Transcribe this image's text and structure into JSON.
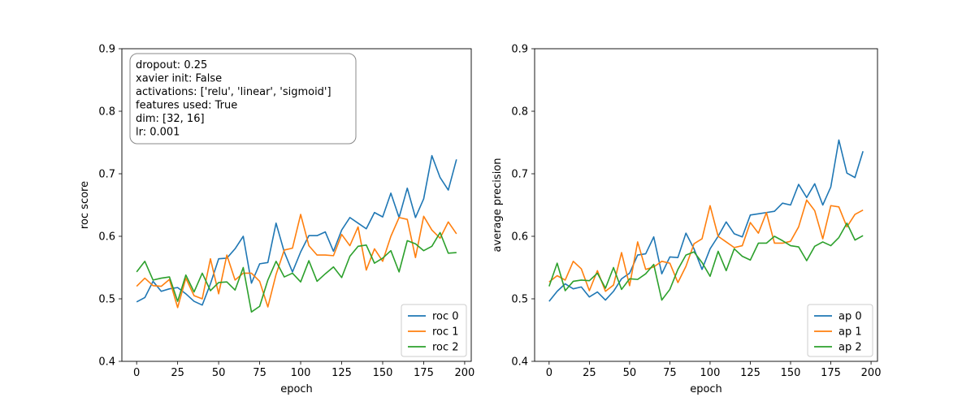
{
  "colors": {
    "series0": "#1f77b4",
    "series1": "#ff7f0e",
    "series2": "#2ca02c"
  },
  "chart_data": [
    {
      "type": "line",
      "title": "",
      "xlabel": "epoch",
      "ylabel": "roc score",
      "xlim": [
        -9,
        204
      ],
      "ylim": [
        0.4,
        0.9
      ],
      "xticks": [
        0,
        25,
        50,
        75,
        100,
        125,
        150,
        175,
        200
      ],
      "yticks": [
        0.4,
        0.5,
        0.6,
        0.7,
        0.8,
        0.9
      ],
      "legend_position": "lower-right",
      "annotation": {
        "position": "top-left",
        "lines": [
          "dropout: 0.25",
          "xavier init: False",
          "activations: ['relu', 'linear', 'sigmoid']",
          "features used: True",
          "dim: [32, 16]",
          "lr: 0.001"
        ]
      },
      "x": [
        0,
        5,
        10,
        15,
        20,
        25,
        30,
        35,
        40,
        45,
        50,
        55,
        60,
        65,
        70,
        75,
        80,
        85,
        90,
        95,
        100,
        105,
        110,
        115,
        120,
        125,
        130,
        135,
        140,
        145,
        150,
        155,
        160,
        165,
        170,
        175,
        180,
        185,
        190,
        195
      ],
      "series": [
        {
          "name": "roc 0",
          "color": "#1f77b4",
          "values": [
            0.495,
            0.502,
            0.528,
            0.512,
            0.516,
            0.518,
            0.508,
            0.496,
            0.49,
            0.524,
            0.564,
            0.565,
            0.58,
            0.6,
            0.525,
            0.556,
            0.558,
            0.621,
            0.575,
            0.543,
            0.575,
            0.601,
            0.601,
            0.607,
            0.576,
            0.61,
            0.63,
            0.621,
            0.612,
            0.638,
            0.631,
            0.669,
            0.63,
            0.677,
            0.63,
            0.66,
            0.729,
            0.694,
            0.674,
            0.723
          ]
        },
        {
          "name": "roc 1",
          "color": "#ff7f0e",
          "values": [
            0.52,
            0.533,
            0.521,
            0.52,
            0.531,
            0.486,
            0.533,
            0.505,
            0.5,
            0.564,
            0.508,
            0.57,
            0.53,
            0.541,
            0.541,
            0.528,
            0.487,
            0.539,
            0.578,
            0.581,
            0.635,
            0.585,
            0.57,
            0.57,
            0.569,
            0.603,
            0.585,
            0.615,
            0.546,
            0.58,
            0.56,
            0.6,
            0.63,
            0.627,
            0.566,
            0.632,
            0.61,
            0.597,
            0.623,
            0.604
          ]
        },
        {
          "name": "roc 2",
          "color": "#2ca02c",
          "values": [
            0.543,
            0.56,
            0.53,
            0.533,
            0.535,
            0.496,
            0.538,
            0.511,
            0.541,
            0.513,
            0.526,
            0.527,
            0.514,
            0.55,
            0.479,
            0.488,
            0.53,
            0.56,
            0.535,
            0.541,
            0.527,
            0.561,
            0.528,
            0.54,
            0.551,
            0.534,
            0.568,
            0.584,
            0.586,
            0.557,
            0.565,
            0.577,
            0.543,
            0.593,
            0.588,
            0.577,
            0.584,
            0.606,
            0.573,
            0.574
          ]
        }
      ]
    },
    {
      "type": "line",
      "title": "",
      "xlabel": "epoch",
      "ylabel": "average precision",
      "xlim": [
        -9,
        204
      ],
      "ylim": [
        0.4,
        0.9
      ],
      "xticks": [
        0,
        25,
        50,
        75,
        100,
        125,
        150,
        175,
        200
      ],
      "yticks": [
        0.4,
        0.5,
        0.6,
        0.7,
        0.8,
        0.9
      ],
      "legend_position": "lower-right",
      "x": [
        0,
        5,
        10,
        15,
        20,
        25,
        30,
        35,
        40,
        45,
        50,
        55,
        60,
        65,
        70,
        75,
        80,
        85,
        90,
        95,
        100,
        105,
        110,
        115,
        120,
        125,
        130,
        135,
        140,
        145,
        150,
        155,
        160,
        165,
        170,
        175,
        180,
        185,
        190,
        195
      ],
      "series": [
        {
          "name": "ap 0",
          "color": "#1f77b4",
          "values": [
            0.496,
            0.512,
            0.524,
            0.516,
            0.519,
            0.503,
            0.511,
            0.498,
            0.512,
            0.532,
            0.541,
            0.57,
            0.572,
            0.599,
            0.54,
            0.567,
            0.566,
            0.605,
            0.58,
            0.547,
            0.58,
            0.6,
            0.623,
            0.604,
            0.599,
            0.634,
            0.636,
            0.638,
            0.64,
            0.653,
            0.65,
            0.683,
            0.662,
            0.684,
            0.65,
            0.679,
            0.754,
            0.701,
            0.694,
            0.736
          ]
        },
        {
          "name": "ap 1",
          "color": "#ff7f0e",
          "values": [
            0.527,
            0.537,
            0.53,
            0.56,
            0.548,
            0.513,
            0.545,
            0.512,
            0.522,
            0.574,
            0.521,
            0.591,
            0.547,
            0.551,
            0.56,
            0.557,
            0.526,
            0.552,
            0.588,
            0.596,
            0.649,
            0.6,
            0.591,
            0.582,
            0.585,
            0.622,
            0.605,
            0.638,
            0.589,
            0.589,
            0.592,
            0.615,
            0.658,
            0.641,
            0.596,
            0.649,
            0.647,
            0.615,
            0.635,
            0.642
          ]
        },
        {
          "name": "ap 2",
          "color": "#2ca02c",
          "values": [
            0.52,
            0.557,
            0.513,
            0.528,
            0.53,
            0.529,
            0.541,
            0.517,
            0.55,
            0.515,
            0.532,
            0.531,
            0.54,
            0.555,
            0.498,
            0.515,
            0.547,
            0.57,
            0.575,
            0.558,
            0.536,
            0.576,
            0.545,
            0.58,
            0.568,
            0.562,
            0.589,
            0.589,
            0.6,
            0.593,
            0.585,
            0.583,
            0.561,
            0.584,
            0.591,
            0.585,
            0.598,
            0.621,
            0.594,
            0.601
          ]
        }
      ]
    }
  ]
}
